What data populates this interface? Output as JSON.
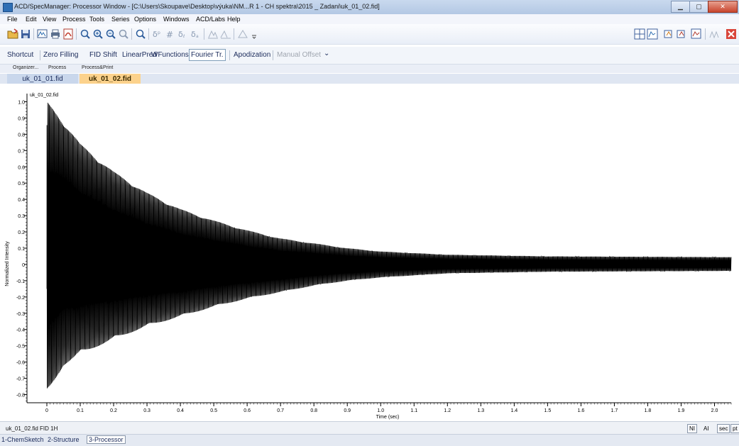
{
  "window": {
    "title": "ACD/SpecManager: Processor Window - [C:\\Users\\Skoupave\\Desktop\\výuka\\NM...R 1 - CH spektra\\2015 _ Zadani\\uk_01_02.fid]"
  },
  "menu": [
    "File",
    "Edit",
    "View",
    "Process",
    "Tools",
    "Series",
    "Options",
    "Windows",
    "ACD/Labs",
    "Help"
  ],
  "processing_toolbar": {
    "items": [
      "Shortcut",
      "Zero Filling",
      "FID Shift",
      "LinearPred",
      "WFunctions",
      "Fourier Tr.",
      "Apodization",
      "Manual Offset"
    ],
    "active": "Fourier Tr.",
    "disabled": "Manual Offset"
  },
  "sub_tabs": [
    "Organizer...",
    "Process",
    "Process&Print"
  ],
  "file_tabs": [
    "uk_01_01.fid",
    "uk_01_02.fid"
  ],
  "active_file_tab": "uk_01_02.fid",
  "chart_data": {
    "type": "line",
    "trace_label": "uk_01_02.fid",
    "xlabel": "Time (sec)",
    "ylabel": "Normalized Intensity",
    "xlim": [
      0,
      2.05
    ],
    "ylim": [
      -0.85,
      1.05
    ],
    "x_ticks": [
      0,
      0.1,
      0.2,
      0.3,
      0.4,
      0.5,
      0.6,
      0.7,
      0.8,
      0.9,
      1.0,
      1.1,
      1.2,
      1.3,
      1.4,
      1.5,
      1.6,
      1.7,
      1.8,
      1.9,
      2.0
    ],
    "x_tick_labels": [
      "0",
      "0.1",
      "0.2",
      "0.3",
      "0.4",
      "0.5",
      "0.6",
      "0.7",
      "0.8",
      "0.9",
      "1.0",
      "1.1",
      "1.2",
      "1.3",
      "1.4",
      "1.5",
      "1.6",
      "1.7",
      "1.8",
      "1.9",
      "2.0"
    ],
    "y_ticks": [
      1.0,
      0.9,
      0.8,
      0.7,
      0.6,
      0.5,
      0.4,
      0.3,
      0.2,
      0.1,
      0,
      -0.1,
      -0.2,
      -0.3,
      -0.4,
      -0.5,
      -0.6,
      -0.7,
      -0.8
    ],
    "y_tick_labels": [
      "1.0",
      "0.9",
      "0.8",
      "0.7",
      "0.6",
      "0.5",
      "0.4",
      "0.3",
      "0.2",
      "0.1",
      "0",
      "-0.1",
      "-0.2",
      "-0.3",
      "-0.4",
      "-0.5",
      "-0.6",
      "-0.7",
      "-0.8"
    ],
    "signal": {
      "description": "decaying oscillation (FID)",
      "envelope_points": [
        {
          "t": 0.0,
          "upper": 1.0,
          "lower": -0.8
        },
        {
          "t": 0.05,
          "upper": 0.88,
          "lower": -0.62
        },
        {
          "t": 0.1,
          "upper": 0.74,
          "lower": -0.55
        },
        {
          "t": 0.2,
          "upper": 0.57,
          "lower": -0.46
        },
        {
          "t": 0.3,
          "upper": 0.44,
          "lower": -0.38
        },
        {
          "t": 0.4,
          "upper": 0.34,
          "lower": -0.32
        },
        {
          "t": 0.5,
          "upper": 0.27,
          "lower": -0.26
        },
        {
          "t": 0.6,
          "upper": 0.21,
          "lower": -0.21
        },
        {
          "t": 0.7,
          "upper": 0.16,
          "lower": -0.17
        },
        {
          "t": 0.8,
          "upper": 0.13,
          "lower": -0.13
        },
        {
          "t": 0.9,
          "upper": 0.1,
          "lower": -0.1
        },
        {
          "t": 1.0,
          "upper": 0.08,
          "lower": -0.08
        },
        {
          "t": 1.2,
          "upper": 0.06,
          "lower": -0.055
        },
        {
          "t": 1.5,
          "upper": 0.05,
          "lower": -0.045
        },
        {
          "t": 2.05,
          "upper": 0.045,
          "lower": -0.04
        }
      ],
      "oscillations_per_second": 400,
      "offset": 0.0,
      "color": "#000000"
    },
    "grid": false
  },
  "status": {
    "text": "uk_01_02.fid   FID  1H",
    "buttons": [
      "NI",
      "AI",
      "sec",
      "pt"
    ]
  },
  "bottom_tabs": [
    "1-ChemSketch",
    "2-Structure",
    "3-Processor"
  ],
  "active_bottom_tab": "3-Processor"
}
